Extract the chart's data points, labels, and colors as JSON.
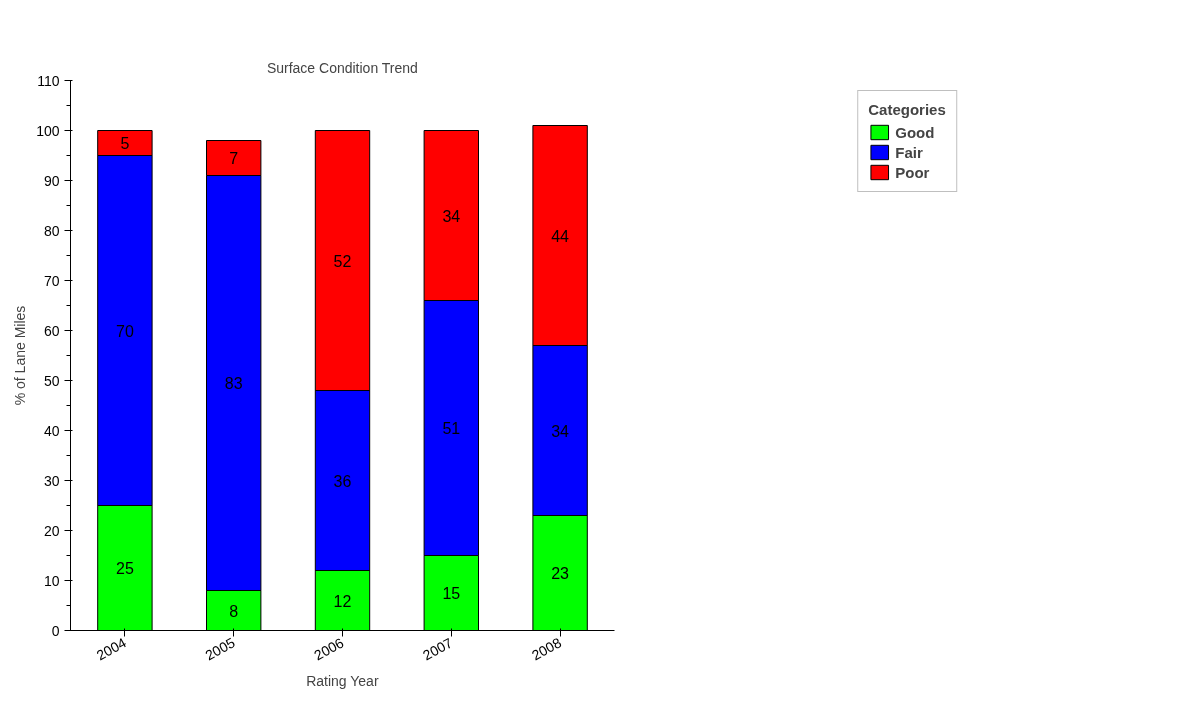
{
  "chart_data": {
    "type": "bar",
    "title": "Surface Condition Trend",
    "xlabel": "Rating Year",
    "ylabel": "% of Lane Miles",
    "legend_title": "Categories",
    "categories": [
      "2004",
      "2005",
      "2006",
      "2007",
      "2008"
    ],
    "series": [
      {
        "name": "Good",
        "color": "#00ff00",
        "values": [
          25,
          8,
          12,
          15,
          23
        ]
      },
      {
        "name": "Fair",
        "color": "#0000ff",
        "values": [
          70,
          83,
          36,
          51,
          34
        ]
      },
      {
        "name": "Poor",
        "color": "#ff0000",
        "values": [
          5,
          7,
          52,
          34,
          44
        ]
      }
    ],
    "stacked": true,
    "data_labels": true,
    "ylim": [
      0,
      110
    ],
    "yticks": [
      0,
      10,
      20,
      30,
      40,
      50,
      60,
      70,
      80,
      90,
      100,
      110
    ],
    "grid": false,
    "legend": "top right"
  }
}
